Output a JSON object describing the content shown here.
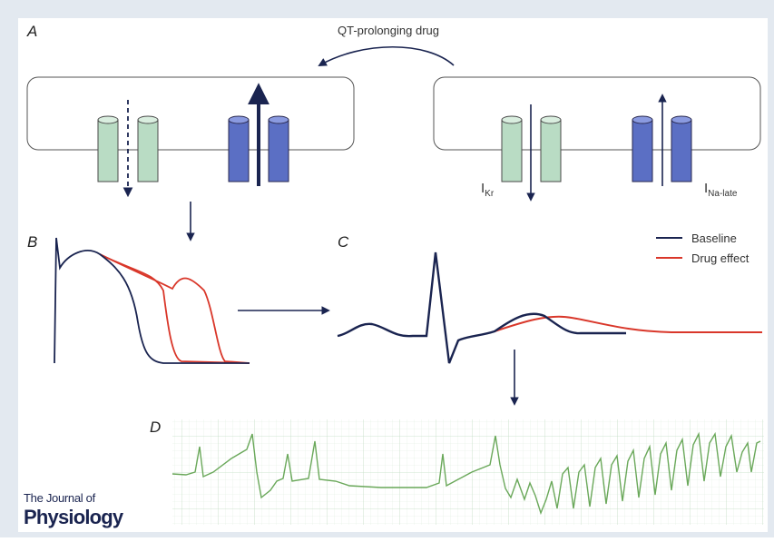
{
  "panels": {
    "a": {
      "label": "A",
      "drug_label": "QT-prolonging drug",
      "currents": [
        {
          "name": "I",
          "subscript": "Kr"
        },
        {
          "name": "I",
          "subscript": "Na-late"
        }
      ]
    },
    "b": {
      "label": "B"
    },
    "c": {
      "label": "C",
      "legend": [
        {
          "name": "Baseline",
          "color": "#1a2450"
        },
        {
          "name": "Drug effect",
          "color": "#d9372a"
        }
      ]
    },
    "d": {
      "label": "D"
    }
  },
  "journal": {
    "line1": "The Journal of",
    "line2": "Physiology"
  }
}
